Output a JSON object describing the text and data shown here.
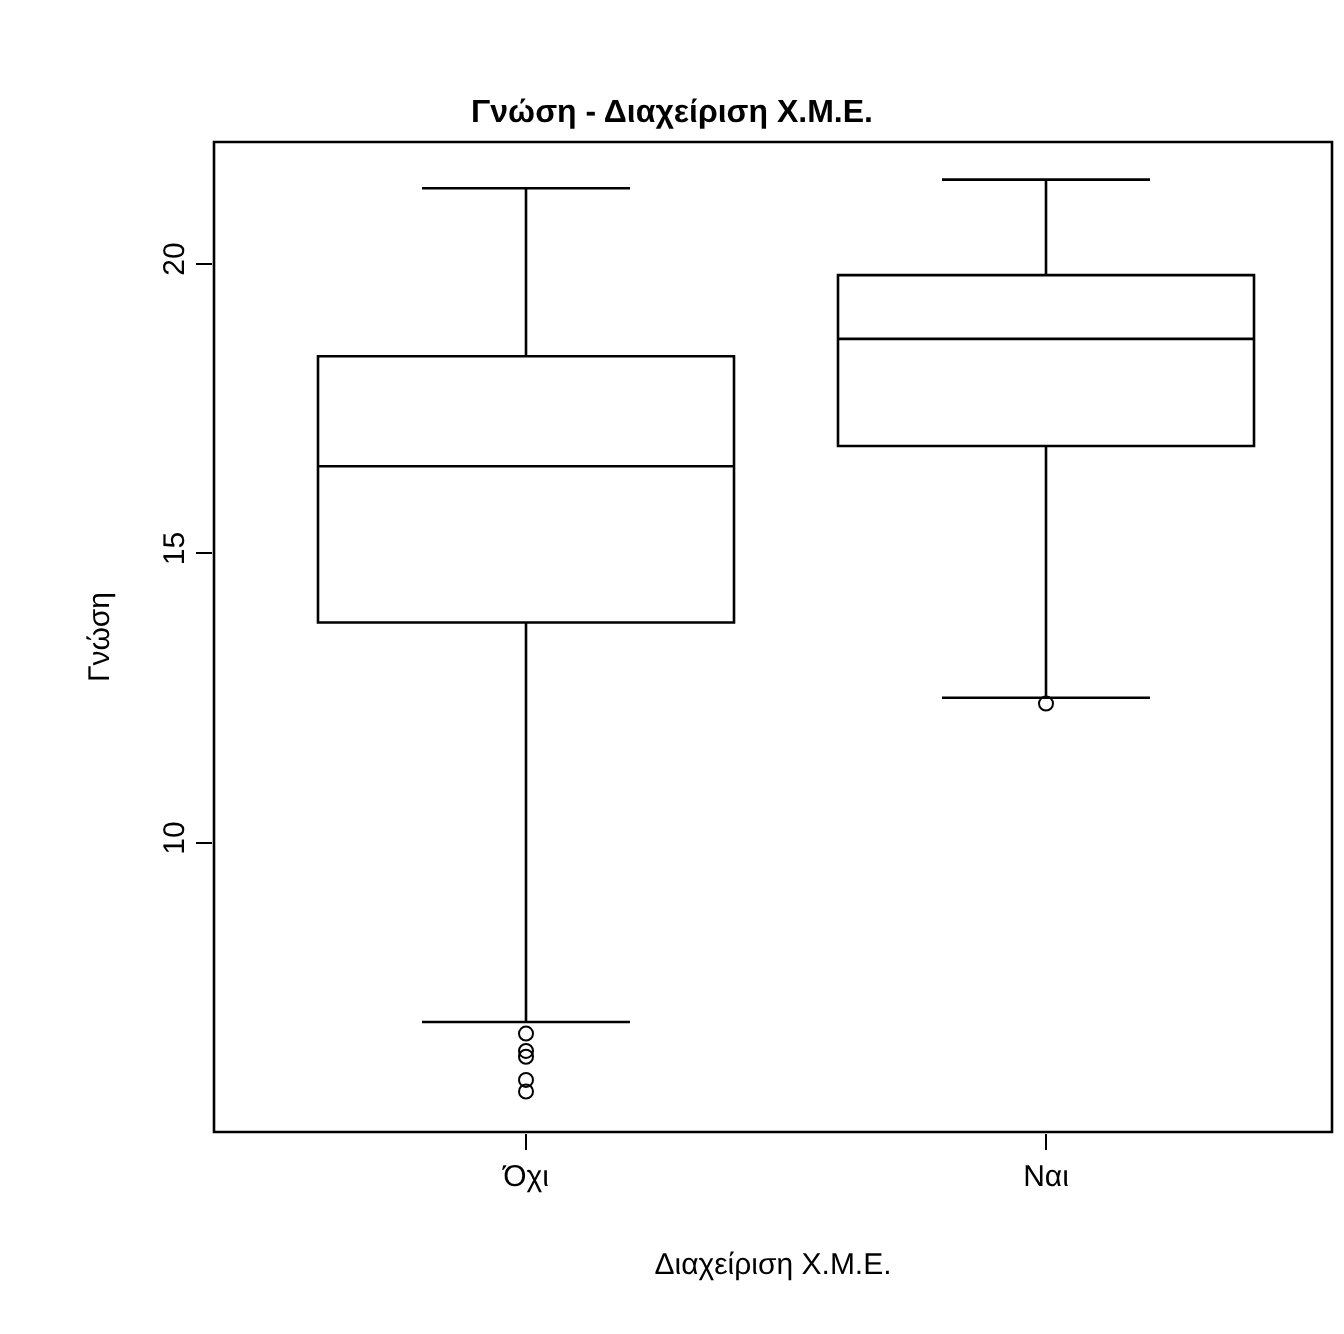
{
  "chart_data": {
    "type": "box",
    "title": "Γνώση - Διαχείριση Χ.Μ.Ε.",
    "xlabel": "Διαχείριση Χ.Μ.Ε.",
    "ylabel": "Γνώση",
    "categories": [
      "Όχι",
      "Ναι"
    ],
    "boxes": [
      {
        "low": 6.9,
        "q1": 13.8,
        "median": 16.5,
        "q3": 18.4,
        "high": 21.3,
        "outliers": [
          6.7,
          6.4,
          6.3,
          5.9,
          5.7
        ]
      },
      {
        "low": 12.5,
        "q1": 16.85,
        "median": 18.7,
        "q3": 19.8,
        "high": 21.45,
        "outliers": [
          12.4
        ]
      }
    ],
    "ylim": [
      5.0,
      22.1
    ],
    "yticks": [
      10,
      15,
      20
    ],
    "marker": "circle"
  }
}
